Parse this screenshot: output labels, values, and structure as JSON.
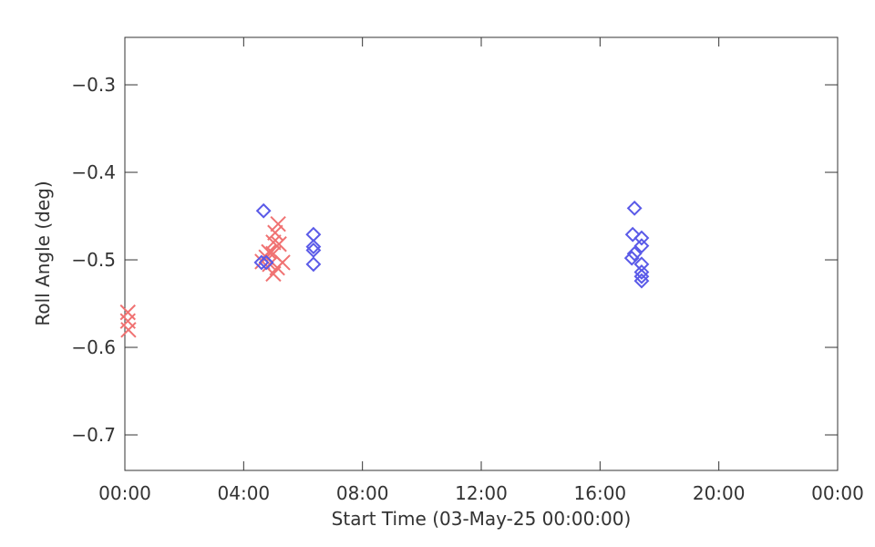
{
  "chart_data": {
    "type": "scatter",
    "x_label": "Start Time (03-May-25 00:00:00)",
    "y_label": "Roll Angle (deg)",
    "xlim": [
      0,
      24
    ],
    "ylim": [
      -0.7406,
      -0.2458
    ],
    "xticks": [
      {
        "value": 0,
        "label": "00:00"
      },
      {
        "value": 4,
        "label": "04:00"
      },
      {
        "value": 8,
        "label": "08:00"
      },
      {
        "value": 12,
        "label": "12:00"
      },
      {
        "value": 16,
        "label": "16:00"
      },
      {
        "value": 20,
        "label": "20:00"
      },
      {
        "value": 24,
        "label": "00:00"
      }
    ],
    "yticks": [
      {
        "value": -0.7,
        "label": "−0.7"
      },
      {
        "value": -0.6,
        "label": "−0.6"
      },
      {
        "value": -0.5,
        "label": "−0.5"
      },
      {
        "value": -0.4,
        "label": "−0.4"
      },
      {
        "value": -0.3,
        "label": "−0.3"
      }
    ],
    "series": [
      {
        "marker": "x",
        "color": "#f07272",
        "x": [
          0.1,
          0.1,
          0.12,
          5.16,
          5.06,
          5.0,
          5.19,
          4.85,
          5.0,
          4.76,
          5.31,
          4.88,
          5.13,
          5.0,
          4.63
        ],
        "values": [
          -0.56,
          -0.57,
          -0.58,
          -0.459,
          -0.469,
          -0.48,
          -0.482,
          -0.491,
          -0.493,
          -0.497,
          -0.503,
          -0.505,
          -0.509,
          -0.516,
          -0.502
        ]
      },
      {
        "marker": "diamond",
        "color": "#5a5ae8",
        "x": [
          4.67,
          4.6,
          4.76,
          6.35,
          6.35,
          6.35,
          6.35,
          17.16,
          17.1,
          17.4,
          17.4,
          17.16,
          17.07,
          17.4,
          17.4,
          17.4,
          17.4
        ],
        "values": [
          -0.444,
          -0.503,
          -0.503,
          -0.471,
          -0.485,
          -0.489,
          -0.505,
          -0.441,
          -0.471,
          -0.475,
          -0.484,
          -0.493,
          -0.498,
          -0.505,
          -0.514,
          -0.519,
          -0.524
        ]
      }
    ]
  }
}
